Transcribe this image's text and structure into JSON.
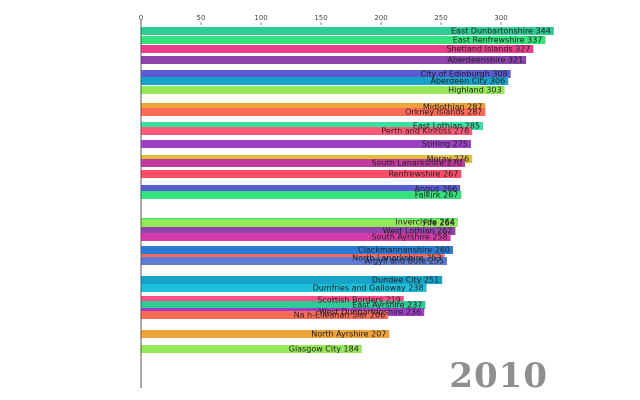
{
  "chart_data": {
    "type": "bar",
    "orientation": "horizontal",
    "title": "",
    "year": "2010",
    "xlim": [
      0,
      340
    ],
    "x_ticks": [
      0,
      50,
      100,
      150,
      200,
      250,
      300
    ],
    "xlabel": "",
    "ylabel": "",
    "grid": false,
    "bars": [
      {
        "label": "East Dunbartonshire",
        "value": 344,
        "color": "#2ecc94"
      },
      {
        "label": "East Renfrewshire",
        "value": 337,
        "color": "#36e27c"
      },
      {
        "label": "Shetland Islands",
        "value": 327,
        "color": "#e83e8c"
      },
      {
        "label": "Aberdeenshire",
        "value": 321,
        "color": "#8e44ad"
      },
      {
        "label": "City of Edinburgh",
        "value": 308,
        "color": "#5b5bd6"
      },
      {
        "label": "Aberdeen City",
        "value": 306,
        "color": "#17a2c8"
      },
      {
        "label": "Highland",
        "value": 303,
        "color": "#96e85a"
      },
      {
        "label": "Midlothian",
        "value": 287,
        "color": "#f0a23a"
      },
      {
        "label": "Orkney Islands",
        "value": 287,
        "color": "#ff6b57"
      },
      {
        "label": "East Lothian",
        "value": 285,
        "color": "#36e2a0"
      },
      {
        "label": "Perth and Kinross",
        "value": 276,
        "color": "#ff5a78"
      },
      {
        "label": "Stirling",
        "value": 275,
        "color": "#9b3fc4"
      },
      {
        "label": "Moray",
        "value": 276,
        "color": "#e0c03a"
      },
      {
        "label": "South Lanarkshire",
        "value": 270,
        "color": "#c0399c"
      },
      {
        "label": "Renfrewshire",
        "value": 267,
        "color": "#ff4d6a"
      },
      {
        "label": "Angus",
        "value": 266,
        "color": "#5b5bd6"
      },
      {
        "label": "Falkirk",
        "value": 267,
        "color": "#36e27c"
      },
      {
        "label": "Inverclyde",
        "value": 264,
        "color": "#36e27c"
      },
      {
        "label": "Fife",
        "value": 264,
        "color": "#96e85a"
      },
      {
        "label": "West Lothian",
        "value": 262,
        "color": "#8e44ad"
      },
      {
        "label": "South Ayrshire",
        "value": 258,
        "color": "#d63aa8"
      },
      {
        "label": "Clackmannanshire",
        "value": 260,
        "color": "#2b7bd6"
      },
      {
        "label": "North Lanarkshire",
        "value": 253,
        "color": "#ff6b57"
      },
      {
        "label": "Argyll and Bute",
        "value": 255,
        "color": "#5b7bd6"
      },
      {
        "label": "Dundee City",
        "value": 251,
        "color": "#17a2c8"
      },
      {
        "label": "Dumfries and Galloway",
        "value": 238,
        "color": "#1ec0dc"
      },
      {
        "label": "Scottish Borders",
        "value": 219,
        "color": "#ff4d8a"
      },
      {
        "label": "East Ayrshire",
        "value": 237,
        "color": "#2ecc94"
      },
      {
        "label": "West Dunbartonshire",
        "value": 236,
        "color": "#9b3fc4"
      },
      {
        "label": "Na h-Eileanan Siar",
        "value": 206,
        "color": "#ff6b57"
      },
      {
        "label": "North Ayrshire",
        "value": 207,
        "color": "#f0a23a"
      },
      {
        "label": "Glasgow City",
        "value": 184,
        "color": "#96e85a"
      }
    ]
  }
}
